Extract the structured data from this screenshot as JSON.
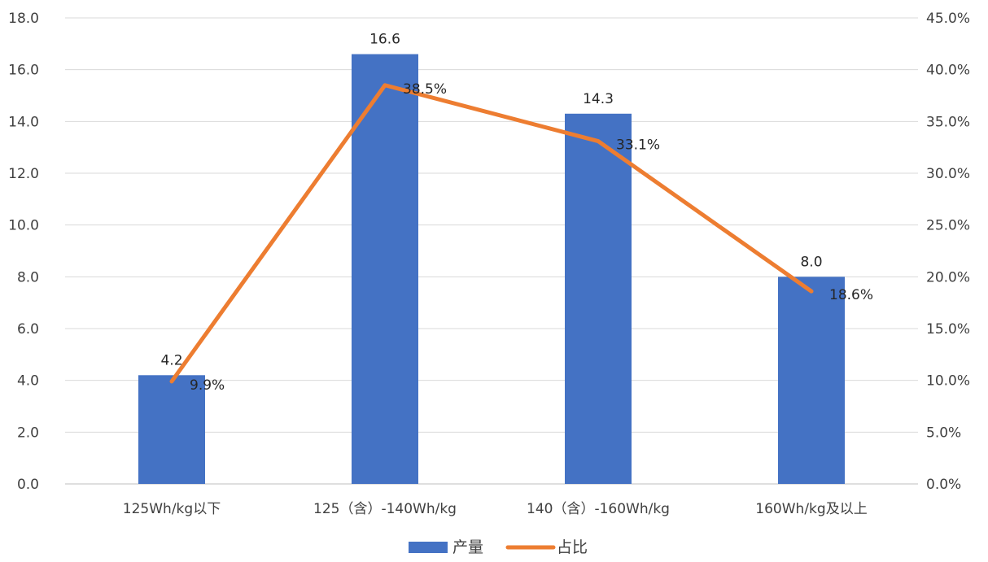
{
  "chart_data": {
    "type": "bar",
    "categories": [
      "125Wh/kg以下",
      "125（含）-140Wh/kg",
      "140（含）-160Wh/kg",
      "160Wh/kg及以上"
    ],
    "series": [
      {
        "name": "产量",
        "type": "bar",
        "axis": "left",
        "values": [
          4.2,
          16.6,
          14.3,
          8.0
        ],
        "labels": [
          "4.2",
          "16.6",
          "14.3",
          "8.0"
        ],
        "color": "#4472C4"
      },
      {
        "name": "占比",
        "type": "line",
        "axis": "right",
        "values": [
          9.9,
          38.5,
          33.1,
          18.6
        ],
        "labels": [
          "9.9%",
          "38.5%",
          "33.1%",
          "18.6%"
        ],
        "color": "#ED7D31"
      }
    ],
    "y_left": {
      "min": 0,
      "max": 18,
      "step": 2,
      "tick_labels": [
        "0.0",
        "2.0",
        "4.0",
        "6.0",
        "8.0",
        "10.0",
        "12.0",
        "14.0",
        "16.0",
        "18.0"
      ]
    },
    "y_right": {
      "min": 0,
      "max": 45,
      "step": 5,
      "tick_labels": [
        "0.0%",
        "5.0%",
        "10.0%",
        "15.0%",
        "20.0%",
        "25.0%",
        "30.0%",
        "35.0%",
        "40.0%",
        "45.0%"
      ]
    },
    "grid": true,
    "legend": "bottom-center",
    "title": "",
    "xlabel": "",
    "ylabel": ""
  }
}
